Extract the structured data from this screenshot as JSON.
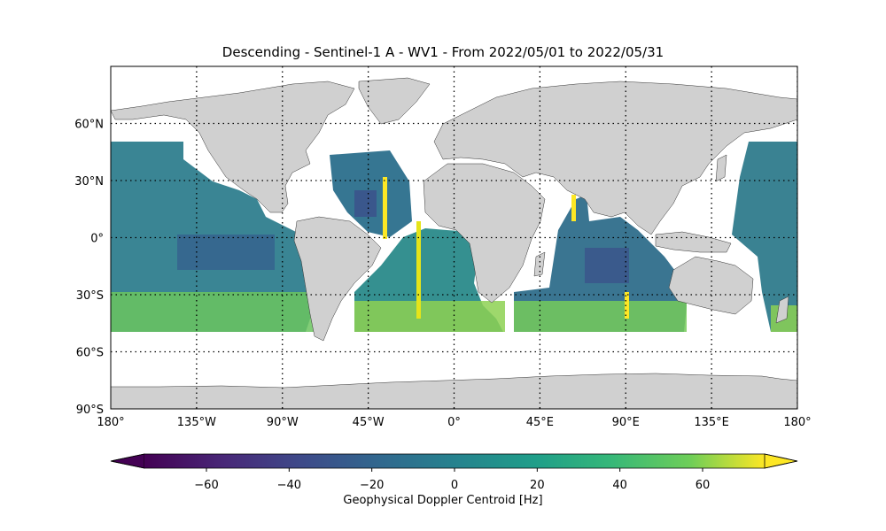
{
  "title": "Descending - Sentinel-1 A - WV1 - From 2022/05/01 to 2022/05/31",
  "map": {
    "lon_ticks": [
      "180°",
      "135°W",
      "90°W",
      "45°W",
      "0°",
      "45°E",
      "90°E",
      "135°E",
      "180°"
    ],
    "lat_ticks": [
      "60°N",
      "30°N",
      "0°",
      "30°S",
      "60°S",
      "90°S"
    ],
    "lon_extent": [
      -180,
      180
    ],
    "lat_extent": [
      -90,
      90
    ],
    "land_color": "#d0d0d0",
    "gridlines": "dotted"
  },
  "colorbar": {
    "label": "Geophysical Doppler Centroid [Hz]",
    "min": -75,
    "max": 75,
    "extend": "both",
    "colormap": "viridis",
    "ticks": [
      "−60",
      "−40",
      "−20",
      "0",
      "20",
      "40",
      "60"
    ],
    "tick_values": [
      -60,
      -40,
      -20,
      0,
      20,
      40,
      60
    ]
  },
  "swath_colors": {
    "low": "#3b528b",
    "mid": "#21918c",
    "high": "#5ec962",
    "max": "#fde725"
  }
}
